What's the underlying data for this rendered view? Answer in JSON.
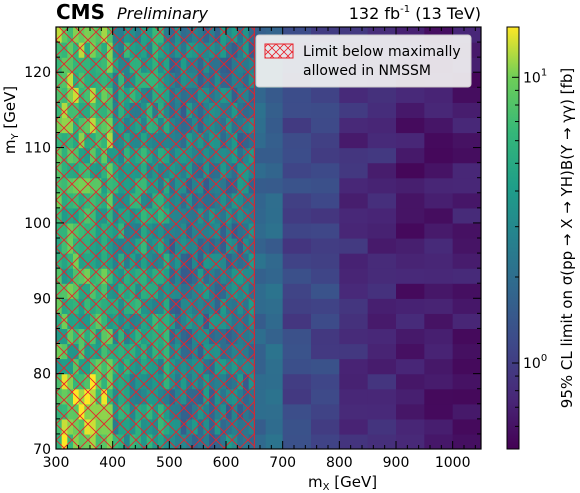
{
  "header": {
    "experiment": "CMS",
    "status": "Preliminary",
    "lumi_value": "132 fb",
    "lumi_exp": "-1",
    "lumi_energy": " (13 TeV)"
  },
  "legend": {
    "line1": "Limit below maximally",
    "line2": "allowed in NMSSM"
  },
  "colors": {
    "hatch": "#e8202a",
    "legend_bg": "#f2f2f2"
  },
  "chart_data": {
    "type": "heatmap",
    "title": "",
    "xlabel_main": "m",
    "xlabel_sub": "X",
    "xlabel_unit": " [GeV]",
    "ylabel_main": "m",
    "ylabel_sub": "Y",
    "ylabel_unit": " [GeV]",
    "zlabel": "95% CL limit on σ(pp → X → YH)B(Y → γγ) [fb]",
    "xlim": [
      300,
      1050
    ],
    "ylim": [
      70,
      126
    ],
    "zlim": [
      0.5,
      15
    ],
    "zscale": "log",
    "colormap": "viridis",
    "x_ticks": [
      "300",
      "400",
      "500",
      "600",
      "700",
      "800",
      "900",
      "1000"
    ],
    "y_ticks": [
      "70",
      "80",
      "90",
      "100",
      "110",
      "120"
    ],
    "z_tick_labels": [
      {
        "base": "10",
        "exp": "0",
        "value": 1
      },
      {
        "base": "10",
        "exp": "1",
        "value": 10
      }
    ],
    "hatched_region": {
      "x_min": 300,
      "x_max": 650,
      "meaning": "Limit below maximally allowed in NMSSM"
    },
    "x_bins": [
      300,
      310,
      320,
      330,
      340,
      350,
      360,
      370,
      380,
      390,
      400,
      410,
      420,
      430,
      440,
      450,
      460,
      470,
      480,
      490,
      500,
      510,
      520,
      530,
      540,
      550,
      560,
      570,
      580,
      590,
      600,
      610,
      620,
      630,
      640,
      650,
      670,
      700,
      750,
      800,
      850,
      900,
      950,
      1000,
      1050
    ],
    "y_bins": [
      70,
      72,
      74,
      76,
      78,
      80,
      82,
      84,
      86,
      88,
      90,
      92,
      94,
      96,
      98,
      100,
      102,
      104,
      106,
      108,
      110,
      112,
      114,
      116,
      118,
      120,
      122,
      124,
      126
    ],
    "approx_limits_fb": {
      "mx_300_400_my_70_80": 10.0,
      "mx_300_400_my_80_110": 6.0,
      "mx_300_400_my_110_126": 8.0,
      "mx_400_500": 4.0,
      "mx_500_650": 2.5,
      "mx_650_700": 1.8,
      "mx_700_800": 1.1,
      "mx_800_900": 0.8,
      "mx_900_1050": 0.65
    }
  }
}
